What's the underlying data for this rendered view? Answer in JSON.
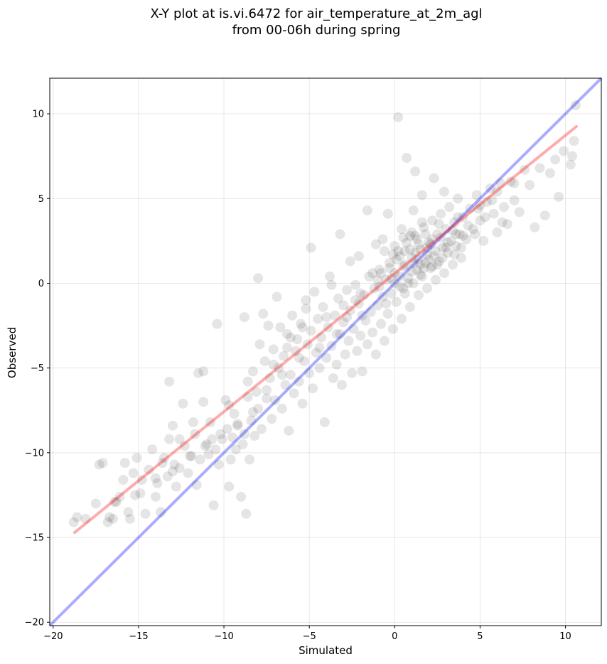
{
  "chart_data": {
    "type": "scatter",
    "title_line1": "X-Y plot at is.vi.6472 for air_temperature_at_2m_agl",
    "title_line2": "from 00-06h during spring",
    "xlabel": "Simulated",
    "ylabel": "Observed",
    "xlim": [
      -20.2,
      12.1
    ],
    "ylim": [
      -20.2,
      12.1
    ],
    "xticks": [
      -20,
      -15,
      -10,
      -5,
      0,
      5,
      10
    ],
    "yticks": [
      -20,
      -15,
      -10,
      -5,
      0,
      5,
      10
    ],
    "xtick_labels": [
      "−20",
      "−15",
      "−10",
      "−5",
      "0",
      "5",
      "10"
    ],
    "ytick_labels": [
      "−20",
      "−15",
      "−10",
      "−5",
      "0",
      "5",
      "10"
    ],
    "grid": true,
    "point_color": "#000000",
    "identity_line": {
      "x": [
        -20.2,
        12.1
      ],
      "y": [
        -20.2,
        12.1
      ],
      "color": "#0000ff"
    },
    "fit_line": {
      "x": [
        -18.8,
        10.7
      ],
      "y": [
        -14.75,
        9.3
      ],
      "color": "#ff0000"
    },
    "points": [
      [
        -18.8,
        -14.1
      ],
      [
        -18.6,
        -13.8
      ],
      [
        -18.1,
        -13.9
      ],
      [
        -17.5,
        -13.0
      ],
      [
        -17.3,
        -10.7
      ],
      [
        -17.1,
        -10.6
      ],
      [
        -16.8,
        -14.1
      ],
      [
        -16.7,
        -13.8
      ],
      [
        -16.5,
        -13.9
      ],
      [
        -16.4,
        -12.9
      ],
      [
        -16.1,
        -12.6
      ],
      [
        -15.9,
        -11.6
      ],
      [
        -15.8,
        -10.6
      ],
      [
        -15.6,
        -13.5
      ],
      [
        -15.5,
        -13.9
      ],
      [
        -15.3,
        -11.2
      ],
      [
        -15.1,
        -10.3
      ],
      [
        -14.9,
        -12.4
      ],
      [
        -14.8,
        -11.6
      ],
      [
        -14.6,
        -13.6
      ],
      [
        -14.4,
        -11.0
      ],
      [
        -14.2,
        -9.8
      ],
      [
        -14.0,
        -12.6
      ],
      [
        -13.9,
        -11.8
      ],
      [
        -13.7,
        -13.5
      ],
      [
        -13.5,
        -10.3
      ],
      [
        -13.3,
        -11.4
      ],
      [
        -13.2,
        -9.2
      ],
      [
        -13.2,
        -5.8
      ],
      [
        -13.0,
        -8.4
      ],
      [
        -12.9,
        -10.7
      ],
      [
        -12.8,
        -12.0
      ],
      [
        -12.6,
        -10.9
      ],
      [
        -12.4,
        -7.1
      ],
      [
        -12.3,
        -9.6
      ],
      [
        -12.1,
        -11.2
      ],
      [
        -11.9,
        -10.2
      ],
      [
        -11.7,
        -8.9
      ],
      [
        -11.6,
        -11.9
      ],
      [
        -11.5,
        -5.3
      ],
      [
        -11.4,
        -10.4
      ],
      [
        -11.2,
        -5.2
      ],
      [
        -11.2,
        -7.0
      ],
      [
        -11.0,
        -9.5
      ],
      [
        -10.9,
        -10.1
      ],
      [
        -10.8,
        -8.2
      ],
      [
        -10.6,
        -13.1
      ],
      [
        -10.5,
        -9.8
      ],
      [
        -10.4,
        -2.4
      ],
      [
        -10.3,
        -10.7
      ],
      [
        -10.1,
        -9.2
      ],
      [
        -9.9,
        -6.9
      ],
      [
        -9.8,
        -8.6
      ],
      [
        -9.7,
        -12.0
      ],
      [
        -9.6,
        -10.4
      ],
      [
        -9.5,
        -9.1
      ],
      [
        -9.4,
        -7.7
      ],
      [
        -9.3,
        -9.8
      ],
      [
        -9.2,
        -8.4
      ],
      [
        -9.0,
        -12.6
      ],
      [
        -8.9,
        -9.5
      ],
      [
        -8.8,
        -2.0
      ],
      [
        -8.8,
        -8.9
      ],
      [
        -8.7,
        -13.6
      ],
      [
        -8.6,
        -6.7
      ],
      [
        -8.5,
        -10.4
      ],
      [
        -8.4,
        -8.1
      ],
      [
        -8.3,
        -5.2
      ],
      [
        -8.2,
        -9.0
      ],
      [
        -8.1,
        -6.4
      ],
      [
        -8.0,
        -7.4
      ],
      [
        -7.9,
        -3.6
      ],
      [
        -7.8,
        -8.6
      ],
      [
        -7.7,
        -1.8
      ],
      [
        -7.6,
        -4.6
      ],
      [
        -7.5,
        -6.3
      ],
      [
        -7.4,
        -2.5
      ],
      [
        -7.3,
        -5.6
      ],
      [
        -7.2,
        -8.0
      ],
      [
        -7.1,
        -3.9
      ],
      [
        -7.0,
        -6.9
      ],
      [
        -6.9,
        -0.8
      ],
      [
        -6.8,
        -5.0
      ],
      [
        -6.7,
        -2.6
      ],
      [
        -6.6,
        -7.4
      ],
      [
        -6.5,
        -4.3
      ],
      [
        -6.4,
        -6.0
      ],
      [
        -6.3,
        -3.0
      ],
      [
        -6.2,
        -8.7
      ],
      [
        -6.1,
        -5.4
      ],
      [
        -6.0,
        -1.9
      ],
      [
        -5.9,
        -6.5
      ],
      [
        -5.8,
        -4.0
      ],
      [
        -5.7,
        -3.3
      ],
      [
        -5.6,
        -5.8
      ],
      [
        -5.5,
        -2.4
      ],
      [
        -5.4,
        -7.1
      ],
      [
        -5.3,
        -4.6
      ],
      [
        -5.2,
        -1.0
      ],
      [
        -5.1,
        -3.6
      ],
      [
        -5.0,
        -5.3
      ],
      [
        -4.9,
        -2.8
      ],
      [
        -4.8,
        -6.2
      ],
      [
        -4.7,
        -0.5
      ],
      [
        -4.6,
        -4.1
      ],
      [
        -4.5,
        -2.1
      ],
      [
        -4.4,
        -5.0
      ],
      [
        -4.3,
        -3.2
      ],
      [
        -4.2,
        -1.4
      ],
      [
        -4.1,
        -8.2
      ],
      [
        -4.0,
        -4.4
      ],
      [
        -3.9,
        -2.6
      ],
      [
        -3.8,
        0.4
      ],
      [
        -3.7,
        -3.7
      ],
      [
        -3.6,
        -5.6
      ],
      [
        -3.5,
        -1.9
      ],
      [
        -3.4,
        -4.8
      ],
      [
        -3.3,
        -0.9
      ],
      [
        -3.2,
        -3.0
      ],
      [
        -3.1,
        -6.0
      ],
      [
        -3.0,
        -2.3
      ],
      [
        -2.9,
        -4.2
      ],
      [
        -2.8,
        -0.4
      ],
      [
        -2.7,
        -3.4
      ],
      [
        -2.6,
        -1.6
      ],
      [
        -2.5,
        -5.3
      ],
      [
        -2.4,
        -2.7
      ],
      [
        -2.3,
        -0.1
      ],
      [
        -2.2,
        -4.0
      ],
      [
        -2.1,
        -1.2
      ],
      [
        -2.0,
        -3.1
      ],
      [
        -1.9,
        -5.2
      ],
      [
        -1.8,
        -0.7
      ],
      [
        -1.7,
        -2.2
      ],
      [
        -1.6,
        -3.6
      ],
      [
        -1.5,
        0.4
      ],
      [
        -1.4,
        -1.7
      ],
      [
        -1.3,
        -2.9
      ],
      [
        -1.2,
        -0.3
      ],
      [
        -1.1,
        -4.2
      ],
      [
        -1.0,
        -1.3
      ],
      [
        -0.9,
        0.8
      ],
      [
        -0.8,
        -2.4
      ],
      [
        -0.7,
        -0.8
      ],
      [
        -0.6,
        -3.4
      ],
      [
        -0.5,
        0.2
      ],
      [
        -0.4,
        -1.8
      ],
      [
        -0.3,
        1.2
      ],
      [
        -0.2,
        -0.6
      ],
      [
        -0.1,
        -2.7
      ],
      [
        0.0,
        0.6
      ],
      [
        0.1,
        -1.1
      ],
      [
        0.2,
        1.9
      ],
      [
        0.3,
        -0.2
      ],
      [
        0.4,
        -2.1
      ],
      [
        0.5,
        1.0
      ],
      [
        0.6,
        -0.6
      ],
      [
        0.7,
        2.4
      ],
      [
        0.8,
        0.3
      ],
      [
        0.9,
        -1.4
      ],
      [
        1.0,
        1.5
      ],
      [
        1.1,
        0.0
      ],
      [
        1.2,
        2.8
      ],
      [
        1.3,
        0.8
      ],
      [
        1.4,
        -0.7
      ],
      [
        1.5,
        2.0
      ],
      [
        1.6,
        0.4
      ],
      [
        1.7,
        3.3
      ],
      [
        1.8,
        1.2
      ],
      [
        1.9,
        -0.3
      ],
      [
        2.0,
        2.4
      ],
      [
        2.1,
        0.9
      ],
      [
        2.2,
        3.7
      ],
      [
        2.3,
        1.6
      ],
      [
        2.4,
        0.2
      ],
      [
        2.5,
        2.9
      ],
      [
        2.6,
        1.3
      ],
      [
        2.7,
        4.1
      ],
      [
        2.8,
        2.1
      ],
      [
        2.9,
        0.6
      ],
      [
        3.0,
        3.2
      ],
      [
        3.1,
        1.8
      ],
      [
        3.2,
        4.5
      ],
      [
        3.3,
        2.5
      ],
      [
        3.4,
        1.1
      ],
      [
        3.5,
        3.6
      ],
      [
        3.6,
        2.2
      ],
      [
        3.7,
        5.0
      ],
      [
        3.8,
        2.9
      ],
      [
        3.9,
        1.5
      ],
      [
        4.0,
        3.9
      ],
      [
        4.2,
        2.6
      ],
      [
        4.4,
        4.4
      ],
      [
        4.6,
        3.2
      ],
      [
        4.8,
        5.2
      ],
      [
        5.0,
        3.7
      ],
      [
        5.2,
        2.5
      ],
      [
        5.4,
        4.8
      ],
      [
        5.6,
        5.6
      ],
      [
        5.8,
        4.1
      ],
      [
        6.0,
        3.0
      ],
      [
        6.2,
        5.9
      ],
      [
        6.4,
        4.5
      ],
      [
        6.6,
        3.5
      ],
      [
        6.8,
        6.0
      ],
      [
        7.0,
        4.9
      ],
      [
        7.3,
        4.2
      ],
      [
        7.6,
        6.7
      ],
      [
        7.9,
        5.8
      ],
      [
        8.2,
        3.3
      ],
      [
        8.5,
        6.8
      ],
      [
        8.8,
        4.0
      ],
      [
        9.1,
        6.5
      ],
      [
        9.4,
        7.3
      ],
      [
        9.6,
        5.1
      ],
      [
        9.9,
        7.8
      ],
      [
        10.4,
        7.5
      ],
      [
        10.5,
        8.4
      ],
      [
        10.6,
        10.5
      ],
      [
        10.3,
        7.0
      ],
      [
        0.2,
        9.8
      ],
      [
        -8.0,
        0.3
      ],
      [
        -6.3,
        -3.8
      ],
      [
        -5.2,
        -1.5
      ],
      [
        -3.7,
        -0.1
      ],
      [
        -2.1,
        1.6
      ],
      [
        -1.1,
        2.3
      ],
      [
        0.4,
        3.2
      ],
      [
        1.1,
        4.3
      ],
      [
        1.6,
        5.2
      ],
      [
        2.3,
        6.2
      ],
      [
        0.7,
        7.4
      ],
      [
        1.2,
        6.6
      ],
      [
        2.9,
        5.4
      ],
      [
        -0.4,
        4.1
      ],
      [
        -1.6,
        4.3
      ],
      [
        -3.2,
        2.9
      ],
      [
        -4.9,
        2.1
      ],
      [
        -2.6,
        1.3
      ],
      [
        -0.6,
        1.9
      ],
      [
        0.9,
        2.0
      ],
      [
        1.4,
        1.4
      ],
      [
        1.9,
        1.7
      ],
      [
        2.1,
        2.3
      ],
      [
        1.3,
        2.6
      ],
      [
        0.6,
        1.1
      ],
      [
        0.3,
        1.6
      ],
      [
        1.7,
        0.9
      ],
      [
        2.4,
        1.9
      ],
      [
        2.7,
        2.7
      ],
      [
        3.1,
        2.4
      ],
      [
        1.0,
        3.0
      ],
      [
        0.0,
        2.2
      ],
      [
        -0.3,
        0.9
      ],
      [
        0.8,
        0.0
      ],
      [
        1.5,
        1.1
      ],
      [
        2.2,
        1.0
      ],
      [
        3.6,
        2.9
      ],
      [
        4.3,
        3.4
      ],
      [
        4.7,
        2.9
      ],
      [
        5.3,
        3.9
      ],
      [
        6.3,
        3.6
      ],
      [
        0.5,
        2.7
      ],
      [
        1.8,
        2.9
      ],
      [
        -0.9,
        -0.2
      ],
      [
        -1.3,
        0.6
      ],
      [
        -2.3,
        -1.0
      ],
      [
        -0.2,
        0.3
      ],
      [
        0.1,
        1.4
      ],
      [
        1.2,
        1.8
      ],
      [
        2.6,
        3.5
      ],
      [
        3.4,
        3.1
      ],
      [
        3.9,
        2.1
      ],
      [
        4.9,
        4.4
      ],
      [
        5.7,
        4.9
      ],
      [
        -1.9,
        -1.9
      ],
      [
        -2.8,
        -2.0
      ],
      [
        -3.4,
        -3.0
      ],
      [
        -4.4,
        -3.8
      ],
      [
        -5.6,
        -4.4
      ],
      [
        -6.6,
        -5.4
      ],
      [
        -7.5,
        -6.8
      ],
      [
        -8.3,
        -7.6
      ],
      [
        -9.2,
        -8.3
      ],
      [
        -10.2,
        -8.9
      ],
      [
        -11.1,
        -9.6
      ],
      [
        -12.0,
        -10.2
      ],
      [
        -13.0,
        -11.1
      ],
      [
        -14.0,
        -11.5
      ],
      [
        -15.2,
        -12.5
      ],
      [
        -16.3,
        -12.9
      ],
      [
        -9.7,
        -7.2
      ],
      [
        -10.7,
        -9.2
      ],
      [
        -12.6,
        -9.2
      ],
      [
        -11.8,
        -8.2
      ],
      [
        -13.6,
        -10.6
      ],
      [
        -8.6,
        -5.8
      ],
      [
        -7.1,
        -4.8
      ],
      [
        -6.1,
        -3.2
      ],
      [
        -5.4,
        -2.6
      ],
      [
        -4.0,
        -2.0
      ],
      [
        -3.0,
        -1.3
      ],
      [
        -2.0,
        -0.6
      ],
      [
        -1.0,
        0.2
      ],
      [
        0.0,
        0.0
      ],
      [
        1.0,
        0.7
      ],
      [
        2.0,
        1.4
      ],
      [
        3.0,
        2.1
      ],
      [
        4.0,
        2.8
      ],
      [
        5.0,
        4.6
      ],
      [
        6.0,
        5.4
      ],
      [
        7.0,
        5.9
      ],
      [
        -0.5,
        -1.2
      ],
      [
        0.5,
        -0.3
      ],
      [
        1.5,
        0.5
      ],
      [
        2.5,
        1.1
      ],
      [
        3.5,
        1.7
      ],
      [
        -0.8,
        0.6
      ],
      [
        0.3,
        0.4
      ],
      [
        1.1,
        1.2
      ],
      [
        1.9,
        2.1
      ],
      [
        2.8,
        1.5
      ],
      [
        3.7,
        3.9
      ],
      [
        0.6,
        1.9
      ],
      [
        1.4,
        2.3
      ],
      [
        2.2,
        2.6
      ],
      [
        0.9,
        2.8
      ],
      [
        1.6,
        3.6
      ],
      [
        -0.1,
        1.7
      ],
      [
        -0.7,
        2.6
      ]
    ]
  }
}
